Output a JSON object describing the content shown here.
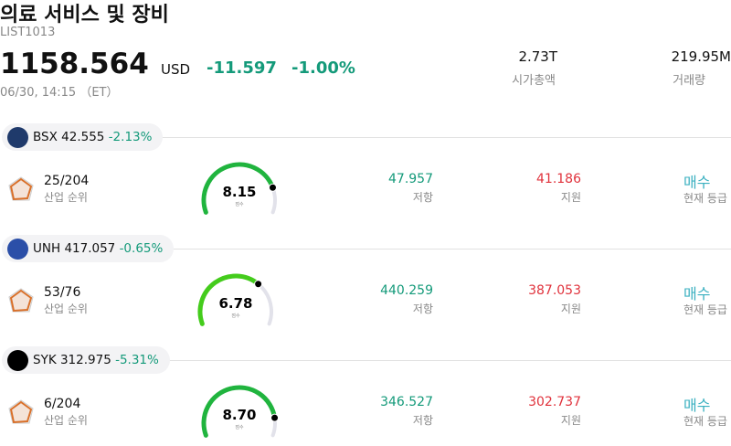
{
  "header": {
    "title": "의료 서비스 및 장비",
    "code": "LIST1013",
    "price": "1158.564",
    "currency": "USD",
    "change": "-11.597",
    "change_pct": "-1.00%",
    "timestamp": "06/30, 14:15 （ET）",
    "stats": [
      {
        "value": "2.73T",
        "label": "시가총액"
      },
      {
        "value": "219.95M",
        "label": "거래량"
      }
    ]
  },
  "stocks": [
    {
      "ticker": "BSX",
      "price": "42.555",
      "change": "-2.13%",
      "rank": "25/204",
      "rank_label": "산업 순위",
      "score": "8.15",
      "score_label": "점수",
      "resistance": "47.957",
      "resistance_label": "저항",
      "support": "41.186",
      "support_label": "지원",
      "rating": "매수",
      "rating_label": "현재 등급"
    },
    {
      "ticker": "UNH",
      "price": "417.057",
      "change": "-0.65%",
      "rank": "53/76",
      "rank_label": "산업 순위",
      "score": "6.78",
      "score_label": "점수",
      "resistance": "440.259",
      "resistance_label": "저항",
      "support": "387.053",
      "support_label": "지원",
      "rating": "매수",
      "rating_label": "현재 등급"
    },
    {
      "ticker": "SYK",
      "price": "312.975",
      "change": "-5.31%",
      "rank": "6/204",
      "rank_label": "산업 순위",
      "score": "8.70",
      "score_label": "점수",
      "resistance": "346.527",
      "resistance_label": "저항",
      "support": "302.737",
      "support_label": "지원",
      "rating": "매수",
      "rating_label": "현재 등급"
    }
  ]
}
